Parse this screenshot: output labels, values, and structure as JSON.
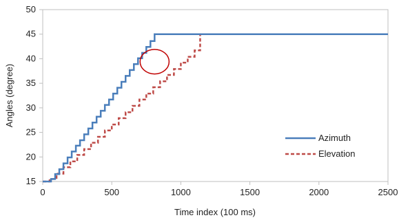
{
  "chart_data": {
    "type": "line",
    "xlabel": "Time index (100 ms)",
    "ylabel": "Angles (degree)",
    "xlim": [
      0,
      2500
    ],
    "ylim": [
      15,
      50
    ],
    "xticks": [
      0,
      500,
      1000,
      1500,
      2000,
      2500
    ],
    "yticks": [
      15,
      20,
      25,
      30,
      35,
      40,
      45,
      50
    ],
    "grid": false,
    "legend_position": "right",
    "series": [
      {
        "name": "Azimuth",
        "color": "#4a7ebb",
        "style": "solid",
        "step": true,
        "x": [
          0,
          60,
          90,
          120,
          150,
          180,
          210,
          240,
          270,
          300,
          330,
          360,
          390,
          420,
          450,
          480,
          510,
          540,
          570,
          600,
          630,
          660,
          690,
          720,
          750,
          780,
          810,
          840,
          870,
          2500
        ],
        "y": [
          15,
          15.5,
          16.5,
          17.5,
          18.7,
          19.9,
          21.1,
          22.3,
          23.4,
          24.6,
          25.8,
          27.0,
          28.2,
          29.4,
          30.6,
          31.7,
          32.9,
          34.1,
          35.3,
          36.5,
          37.7,
          38.9,
          40.1,
          41.2,
          42.4,
          43.6,
          45,
          45,
          45,
          45
        ]
      },
      {
        "name": "Elevation",
        "color": "#be4b48",
        "style": "dashed",
        "step": true,
        "x": [
          0,
          50,
          100,
          150,
          200,
          250,
          300,
          350,
          400,
          450,
          500,
          550,
          600,
          650,
          700,
          750,
          800,
          850,
          900,
          950,
          1000,
          1050,
          1100,
          1140,
          2500
        ],
        "y": [
          15,
          15.5,
          16.6,
          17.9,
          19.1,
          20.4,
          21.6,
          22.9,
          24.1,
          25.4,
          26.6,
          27.9,
          29.1,
          30.4,
          31.7,
          32.9,
          34.2,
          35.4,
          36.7,
          37.9,
          39.2,
          40.4,
          41.7,
          45,
          45
        ]
      }
    ],
    "annotations": [
      {
        "type": "ellipse",
        "color": "#c00000",
        "cx": 810,
        "cy": 39.4,
        "rx": 210,
        "ry": 2.5
      }
    ]
  }
}
